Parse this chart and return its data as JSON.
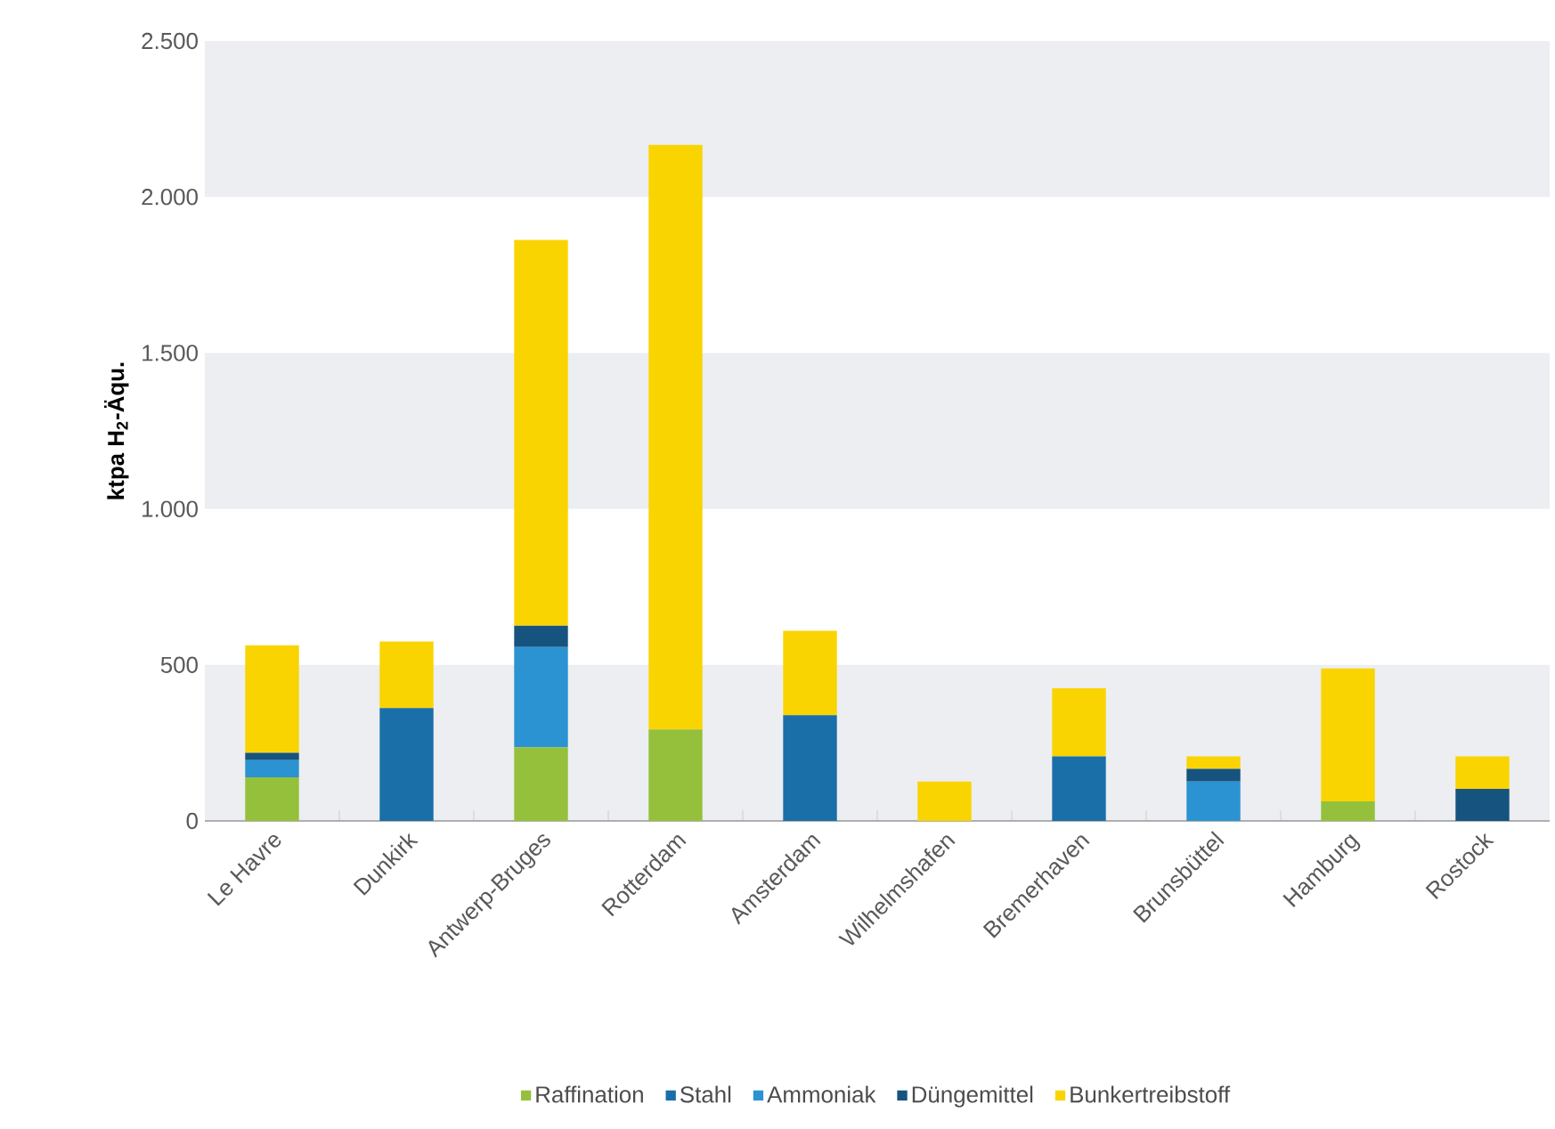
{
  "chart_data": {
    "type": "bar",
    "stacked": true,
    "ylabel": "ktpa H$_{2}$-Äqu.",
    "categories": [
      "Le Havre",
      "Dunkirk",
      "Antwerp-Bruges",
      "Rotterdam",
      "Amsterdam",
      "Wilhelmshafen",
      "Bremerhaven",
      "Brunsbüttel",
      "Hamburg",
      "Rostock"
    ],
    "series": [
      {
        "name": "Raffination",
        "color": "#95c03c",
        "values": [
          140,
          0,
          236,
          293,
          0,
          0,
          0,
          0,
          63,
          0
        ]
      },
      {
        "name": "Stahl",
        "color": "#1a6fa8",
        "values": [
          0,
          362,
          0,
          0,
          339,
          0,
          207,
          0,
          0,
          0
        ]
      },
      {
        "name": "Ammoniak",
        "color": "#2b93d1",
        "values": [
          55,
          0,
          321,
          0,
          0,
          0,
          0,
          126,
          0,
          0
        ]
      },
      {
        "name": "Düngemittel",
        "color": "#17537f",
        "values": [
          23,
          0,
          69,
          0,
          0,
          0,
          0,
          41,
          0,
          103
        ]
      },
      {
        "name": "Bunkertreibstoff",
        "color": "#fad400",
        "values": [
          345,
          213,
          1236,
          1874,
          270,
          126,
          218,
          40,
          426,
          104
        ]
      }
    ],
    "ylim": [
      0,
      2500
    ],
    "yticks": [
      {
        "value": 0,
        "label": "0"
      },
      {
        "value": 500,
        "label": "500"
      },
      {
        "value": 1000,
        "label": "1.000"
      },
      {
        "value": 1500,
        "label": "1.500"
      },
      {
        "value": 2000,
        "label": "2.000"
      },
      {
        "value": 2500,
        "label": "2.500"
      }
    ],
    "bands": [
      {
        "axis": "y",
        "from": 0,
        "to": 500,
        "color": "#eceef1"
      },
      {
        "axis": "y",
        "from": 1000,
        "to": 1500,
        "color": "#eceef1"
      },
      {
        "axis": "y",
        "from": 2000,
        "to": 2500,
        "color": "#eceef1"
      }
    ],
    "legend": "bottom"
  }
}
